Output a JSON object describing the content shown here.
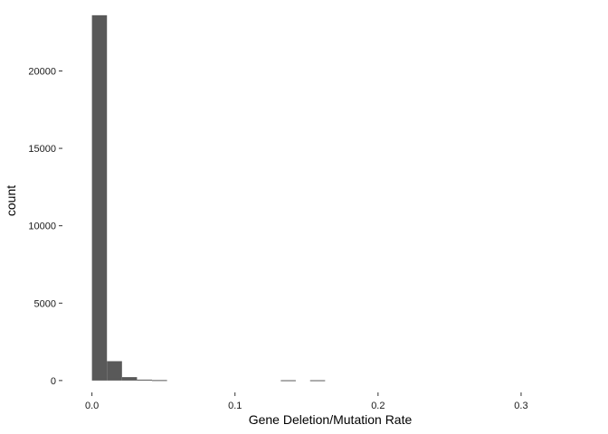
{
  "chart_data": {
    "type": "bar",
    "title": "",
    "xlabel": "Gene Deletion/Mutation Rate",
    "ylabel": "count",
    "x_ticks": [
      "0.0",
      "0.1",
      "0.2",
      "0.3"
    ],
    "y_ticks": [
      "0",
      "5000",
      "10000",
      "15000",
      "20000"
    ],
    "bins": [
      {
        "x_start": 0.0,
        "x_end": 0.0105,
        "count": 23600
      },
      {
        "x_start": 0.0105,
        "x_end": 0.021,
        "count": 1250
      },
      {
        "x_start": 0.021,
        "x_end": 0.0315,
        "count": 220
      },
      {
        "x_start": 0.0315,
        "x_end": 0.042,
        "count": 60
      },
      {
        "x_start": 0.042,
        "x_end": 0.0525,
        "count": 30
      },
      {
        "x_start": 0.132,
        "x_end": 0.1425,
        "count": 20
      },
      {
        "x_start": 0.1525,
        "x_end": 0.163,
        "count": 20
      }
    ],
    "xlim": [
      -0.02,
      0.35
    ],
    "ylim": [
      -650,
      24000
    ],
    "grid": false,
    "bar_color": "#595959"
  }
}
